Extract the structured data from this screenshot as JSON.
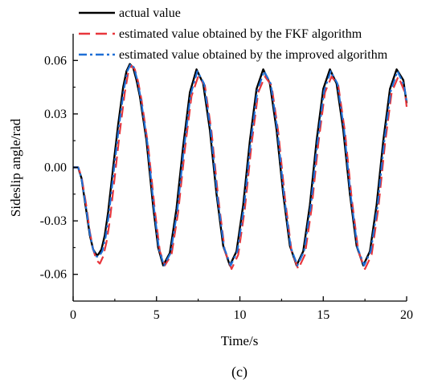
{
  "chart_data": {
    "type": "line",
    "xlabel": "Time/s",
    "ylabel": "Sideslip angle/rad",
    "xlim": [
      0,
      20
    ],
    "ylim": [
      -0.075,
      0.075
    ],
    "xticks": [
      0,
      5,
      10,
      15,
      20
    ],
    "xtick_labels": [
      "0",
      "5",
      "10",
      "15",
      "20"
    ],
    "yticks": [
      -0.06,
      -0.03,
      0.0,
      0.03,
      0.06
    ],
    "ytick_labels": [
      "-0.06",
      "-0.03",
      "0.00",
      "0.03",
      "0.06"
    ],
    "grid": false,
    "legend_placement": "top-left",
    "panel_label": "(c)",
    "series": [
      {
        "name": "actual value",
        "color": "#000000",
        "line_style": "solid",
        "x": [
          0,
          0.3,
          0.5,
          0.8,
          1.0,
          1.2,
          1.4,
          1.5,
          1.7,
          1.9,
          2.1,
          2.4,
          2.7,
          3.0,
          3.2,
          3.4,
          3.6,
          3.8,
          4.0,
          4.4,
          4.8,
          5.1,
          5.4,
          5.8,
          6.2,
          6.6,
          7.0,
          7.4,
          7.8,
          8.2,
          8.6,
          9.0,
          9.4,
          9.8,
          10.2,
          10.6,
          11.0,
          11.4,
          11.8,
          12.2,
          12.6,
          13.0,
          13.4,
          13.8,
          14.2,
          14.6,
          15.0,
          15.4,
          15.8,
          16.2,
          16.6,
          17.0,
          17.4,
          17.8,
          18.2,
          18.6,
          19.0,
          19.4,
          19.8,
          20.0
        ],
        "y": [
          0.0,
          0.0,
          -0.006,
          -0.025,
          -0.038,
          -0.046,
          -0.049,
          -0.049,
          -0.046,
          -0.038,
          -0.025,
          0.0,
          0.024,
          0.045,
          0.054,
          0.058,
          0.056,
          0.049,
          0.04,
          0.015,
          -0.022,
          -0.045,
          -0.055,
          -0.048,
          -0.023,
          0.012,
          0.042,
          0.055,
          0.047,
          0.021,
          -0.015,
          -0.044,
          -0.055,
          -0.047,
          -0.021,
          0.015,
          0.044,
          0.055,
          0.047,
          0.021,
          -0.015,
          -0.044,
          -0.055,
          -0.047,
          -0.021,
          0.015,
          0.044,
          0.055,
          0.047,
          0.021,
          -0.015,
          -0.044,
          -0.055,
          -0.047,
          -0.021,
          0.015,
          0.044,
          0.055,
          0.049,
          0.036
        ]
      },
      {
        "name": "estimated value obtained by the FKF algorithm",
        "color": "#e8363c",
        "line_style": "dashed",
        "x": [
          0,
          0.3,
          0.5,
          0.8,
          1.0,
          1.2,
          1.4,
          1.6,
          1.8,
          2.0,
          2.2,
          2.5,
          2.8,
          3.1,
          3.3,
          3.5,
          3.7,
          3.9,
          4.1,
          4.5,
          4.9,
          5.2,
          5.5,
          5.9,
          6.3,
          6.7,
          7.1,
          7.5,
          7.9,
          8.3,
          8.7,
          9.1,
          9.5,
          9.9,
          10.3,
          10.7,
          11.1,
          11.5,
          11.9,
          12.3,
          12.7,
          13.1,
          13.5,
          13.9,
          14.3,
          14.7,
          15.1,
          15.5,
          15.9,
          16.3,
          16.7,
          17.1,
          17.5,
          17.9,
          18.3,
          18.7,
          19.1,
          19.5,
          19.9,
          20.0
        ],
        "y": [
          0.0,
          0.0,
          -0.005,
          -0.022,
          -0.036,
          -0.046,
          -0.052,
          -0.054,
          -0.05,
          -0.042,
          -0.03,
          -0.005,
          0.02,
          0.042,
          0.053,
          0.057,
          0.055,
          0.048,
          0.038,
          0.012,
          -0.024,
          -0.047,
          -0.055,
          -0.049,
          -0.025,
          0.01,
          0.04,
          0.051,
          0.046,
          0.02,
          -0.017,
          -0.047,
          -0.057,
          -0.049,
          -0.023,
          0.013,
          0.042,
          0.051,
          0.046,
          0.02,
          -0.017,
          -0.047,
          -0.057,
          -0.049,
          -0.023,
          0.013,
          0.042,
          0.051,
          0.046,
          0.02,
          -0.017,
          -0.047,
          -0.057,
          -0.049,
          -0.023,
          0.013,
          0.042,
          0.051,
          0.042,
          0.034
        ]
      },
      {
        "name": "estimated value obtained by the improved algorithm",
        "color": "#1f6fd6",
        "line_style": "dashdot",
        "x": [
          0,
          0.3,
          0.5,
          0.8,
          1.0,
          1.2,
          1.4,
          1.55,
          1.75,
          1.95,
          2.15,
          2.45,
          2.75,
          3.05,
          3.25,
          3.45,
          3.65,
          3.85,
          4.05,
          4.45,
          4.85,
          5.15,
          5.45,
          5.85,
          6.25,
          6.65,
          7.05,
          7.45,
          7.85,
          8.25,
          8.65,
          9.05,
          9.45,
          9.85,
          10.25,
          10.65,
          11.05,
          11.45,
          11.85,
          12.25,
          12.65,
          13.05,
          13.45,
          13.85,
          14.25,
          14.65,
          15.05,
          15.45,
          15.85,
          16.25,
          16.65,
          17.05,
          17.45,
          17.85,
          18.25,
          18.65,
          19.05,
          19.45,
          19.85,
          20.0
        ],
        "y": [
          0.0,
          0.0,
          -0.006,
          -0.024,
          -0.037,
          -0.046,
          -0.05,
          -0.05,
          -0.047,
          -0.039,
          -0.026,
          -0.001,
          0.023,
          0.044,
          0.054,
          0.058,
          0.056,
          0.049,
          0.039,
          0.014,
          -0.023,
          -0.046,
          -0.055,
          -0.048,
          -0.024,
          0.011,
          0.041,
          0.054,
          0.047,
          0.021,
          -0.016,
          -0.045,
          -0.055,
          -0.047,
          -0.022,
          0.014,
          0.043,
          0.054,
          0.047,
          0.021,
          -0.016,
          -0.045,
          -0.055,
          -0.047,
          -0.022,
          0.014,
          0.043,
          0.054,
          0.047,
          0.021,
          -0.016,
          -0.045,
          -0.055,
          -0.047,
          -0.022,
          0.014,
          0.043,
          0.054,
          0.046,
          0.037
        ]
      }
    ]
  }
}
